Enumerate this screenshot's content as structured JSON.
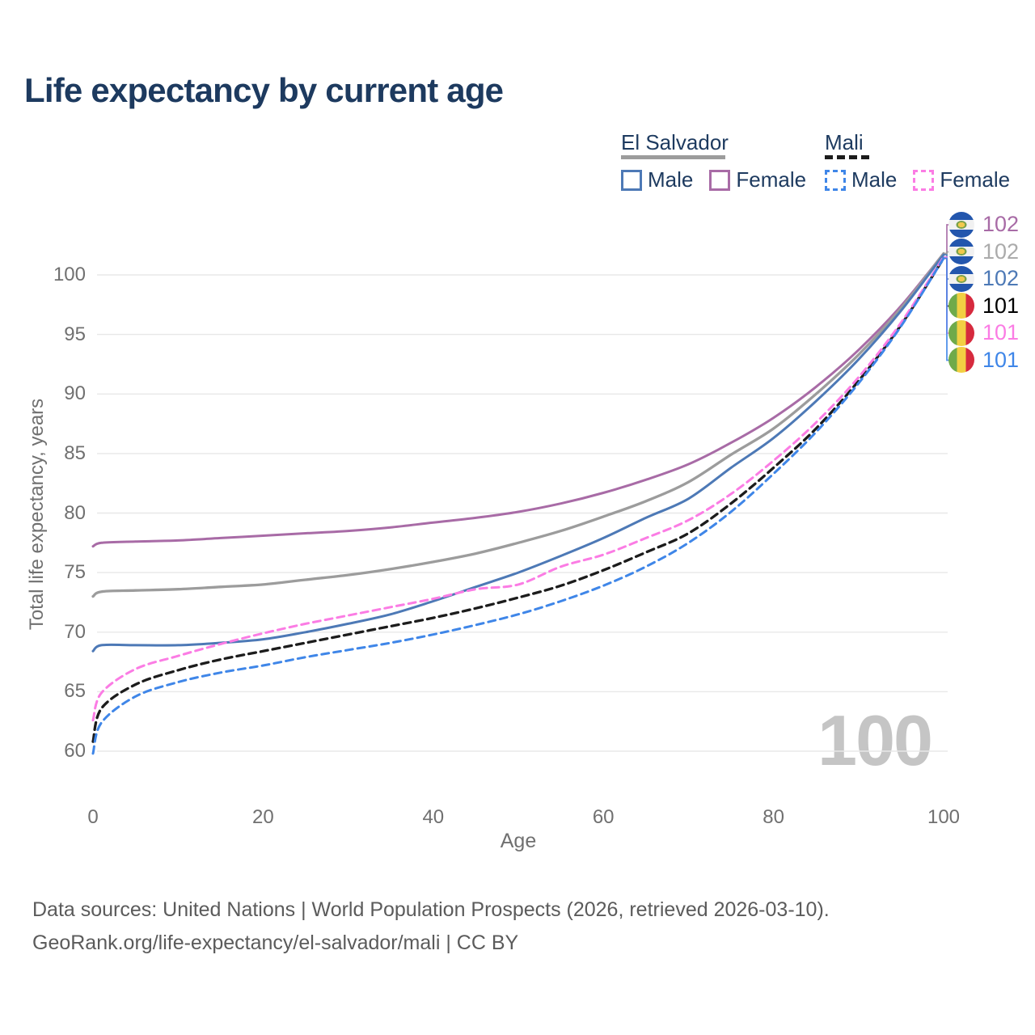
{
  "page": {
    "title": "Life expectancy by current age",
    "watermark": "100",
    "footer_line1": "Data sources: United Nations | World Population Prospects (2026, retrieved 2026-03-10).",
    "footer_line2": "GeoRank.org/life-expectancy/el-salvador/mali | CC BY"
  },
  "legend": {
    "groups": [
      {
        "label": "El Salvador",
        "line_style": "solid",
        "underline_color": "#9c9c9c",
        "items": [
          {
            "label": "Male",
            "color": "#4d79b6",
            "dashed": false
          },
          {
            "label": "Female",
            "color": "#a86ba6",
            "dashed": false
          }
        ]
      },
      {
        "label": "Mali",
        "line_style": "dashed",
        "underline_color": "#1c1c1c",
        "items": [
          {
            "label": "Male",
            "color": "#3f86e8",
            "dashed": true
          },
          {
            "label": "Female",
            "color": "#fb7ce4",
            "dashed": true
          }
        ]
      }
    ]
  },
  "chart_data": {
    "type": "line",
    "title": "Life expectancy by current age",
    "xlabel": "Age",
    "ylabel": "Total life expectancy, years",
    "xlim": [
      0,
      100
    ],
    "ylim": [
      59.5,
      102.5
    ],
    "x_ticks": [
      0,
      20,
      40,
      60,
      80,
      100
    ],
    "y_ticks": [
      60,
      65,
      70,
      75,
      80,
      85,
      90,
      95,
      100
    ],
    "grid": "horizontal",
    "legend_position": "top-right",
    "x": [
      0,
      1,
      5,
      10,
      15,
      20,
      25,
      30,
      35,
      40,
      45,
      50,
      55,
      60,
      65,
      70,
      75,
      80,
      85,
      90,
      95,
      100
    ],
    "series": [
      {
        "name": "El Salvador Female",
        "country": "El Salvador",
        "sex": "Female",
        "color": "#a86ba6",
        "dash": false,
        "end_label": "102",
        "values": [
          77.2,
          77.5,
          77.6,
          77.7,
          77.9,
          78.1,
          78.3,
          78.5,
          78.8,
          79.2,
          79.6,
          80.1,
          80.8,
          81.7,
          82.8,
          84.1,
          85.9,
          88.0,
          90.6,
          93.7,
          97.4,
          101.8
        ]
      },
      {
        "name": "El Salvador Both sexes",
        "country": "El Salvador",
        "sex": "Both sexes",
        "color": "#9c9c9c",
        "dash": false,
        "end_label": "102",
        "values": [
          73.0,
          73.4,
          73.5,
          73.6,
          73.8,
          74.0,
          74.4,
          74.8,
          75.3,
          75.9,
          76.6,
          77.5,
          78.5,
          79.7,
          81.0,
          82.6,
          84.9,
          87.1,
          90.0,
          93.3,
          97.2,
          101.8
        ]
      },
      {
        "name": "El Salvador Male",
        "country": "El Salvador",
        "sex": "Male",
        "color": "#4d79b6",
        "dash": false,
        "end_label": "102",
        "values": [
          68.4,
          68.9,
          68.9,
          68.9,
          69.1,
          69.4,
          70.0,
          70.7,
          71.5,
          72.6,
          73.8,
          75.0,
          76.4,
          77.9,
          79.6,
          81.2,
          83.8,
          86.3,
          89.4,
          92.9,
          97.0,
          101.7
        ]
      },
      {
        "name": "Mali Both sexes",
        "country": "Mali",
        "sex": "Both sexes",
        "color": "#1c1c1c",
        "dash": true,
        "end_label": "101",
        "values": [
          60.8,
          63.6,
          65.6,
          66.8,
          67.7,
          68.4,
          69.1,
          69.8,
          70.5,
          71.2,
          72.0,
          72.9,
          73.9,
          75.2,
          76.7,
          78.3,
          80.8,
          83.8,
          87.1,
          91.1,
          95.8,
          101.4
        ]
      },
      {
        "name": "Mali Female",
        "country": "Mali",
        "sex": "Female",
        "color": "#fb7ce4",
        "dash": true,
        "end_label": "101",
        "values": [
          62.6,
          64.9,
          66.9,
          68.0,
          69.0,
          69.9,
          70.7,
          71.4,
          72.1,
          72.8,
          73.6,
          74.0,
          75.5,
          76.5,
          77.9,
          79.4,
          81.6,
          84.4,
          87.6,
          91.4,
          96.0,
          101.5
        ]
      },
      {
        "name": "Mali Male",
        "country": "Mali",
        "sex": "Male",
        "color": "#3f86e8",
        "dash": true,
        "end_label": "101",
        "values": [
          59.8,
          62.4,
          64.6,
          65.8,
          66.6,
          67.2,
          67.9,
          68.5,
          69.1,
          69.8,
          70.6,
          71.5,
          72.6,
          73.9,
          75.5,
          77.5,
          80.1,
          83.3,
          86.8,
          90.9,
          95.7,
          101.4
        ]
      }
    ],
    "end_labels": [
      {
        "value": "102",
        "color": "#a86ba6",
        "flag": "el-salvador"
      },
      {
        "value": "102",
        "color": "#ababab",
        "flag": "el-salvador"
      },
      {
        "value": "102",
        "color": "#4d79b6",
        "flag": "el-salvador"
      },
      {
        "value": "101",
        "color": "#000000",
        "flag": "mali"
      },
      {
        "value": "101",
        "color": "#fb7ce4",
        "flag": "mali"
      },
      {
        "value": "101",
        "color": "#3f86e8",
        "flag": "mali"
      }
    ]
  }
}
